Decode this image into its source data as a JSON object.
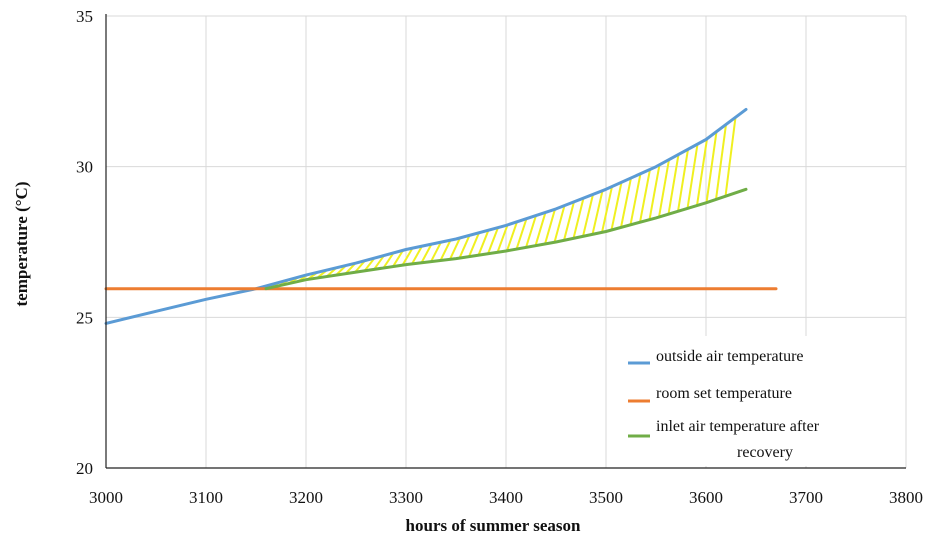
{
  "chart_data": {
    "type": "line",
    "title": "",
    "xlabel": "hours of summer season",
    "ylabel": "temperature (°C)",
    "xlim": [
      3000,
      3800
    ],
    "ylim": [
      20,
      35
    ],
    "x_ticks": [
      3000,
      3100,
      3200,
      3300,
      3400,
      3500,
      3600,
      3700,
      3800
    ],
    "y_ticks": [
      20,
      25,
      30,
      35
    ],
    "x_tick_labels": [
      "3000",
      "3100",
      "3200",
      "3300",
      "3400",
      "3500",
      "3600",
      "3700",
      "3800"
    ],
    "y_tick_labels": [
      "20",
      "25",
      "30",
      "35"
    ],
    "grid": true,
    "legend_position": "bottom-right",
    "series": [
      {
        "name": "outside air temperature",
        "color": "#5b9bd5",
        "x": [
          3000,
          3050,
          3100,
          3150,
          3200,
          3250,
          3300,
          3350,
          3400,
          3450,
          3500,
          3550,
          3600,
          3640
        ],
        "y": [
          24.8,
          25.2,
          25.6,
          25.95,
          26.4,
          26.8,
          27.25,
          27.6,
          28.05,
          28.6,
          29.25,
          30.0,
          30.9,
          31.9
        ]
      },
      {
        "name": "room set temperature",
        "color": "#ed7d31",
        "x": [
          3000,
          3670
        ],
        "y": [
          25.95,
          25.95
        ]
      },
      {
        "name": "inlet air temperature after recovery",
        "legend_lines": [
          "inlet air temperature after",
          "recovery"
        ],
        "color": "#70ad47",
        "x": [
          3160,
          3200,
          3250,
          3300,
          3350,
          3400,
          3450,
          3500,
          3550,
          3600,
          3640
        ],
        "y": [
          25.95,
          26.25,
          26.5,
          26.75,
          26.95,
          27.2,
          27.5,
          27.85,
          28.3,
          28.8,
          29.25
        ]
      }
    ],
    "hatch_region": {
      "between": [
        "outside air temperature",
        "inlet air temperature after recovery"
      ],
      "x_from": 3160,
      "x_to": 3640,
      "color": "#f0f020"
    }
  }
}
